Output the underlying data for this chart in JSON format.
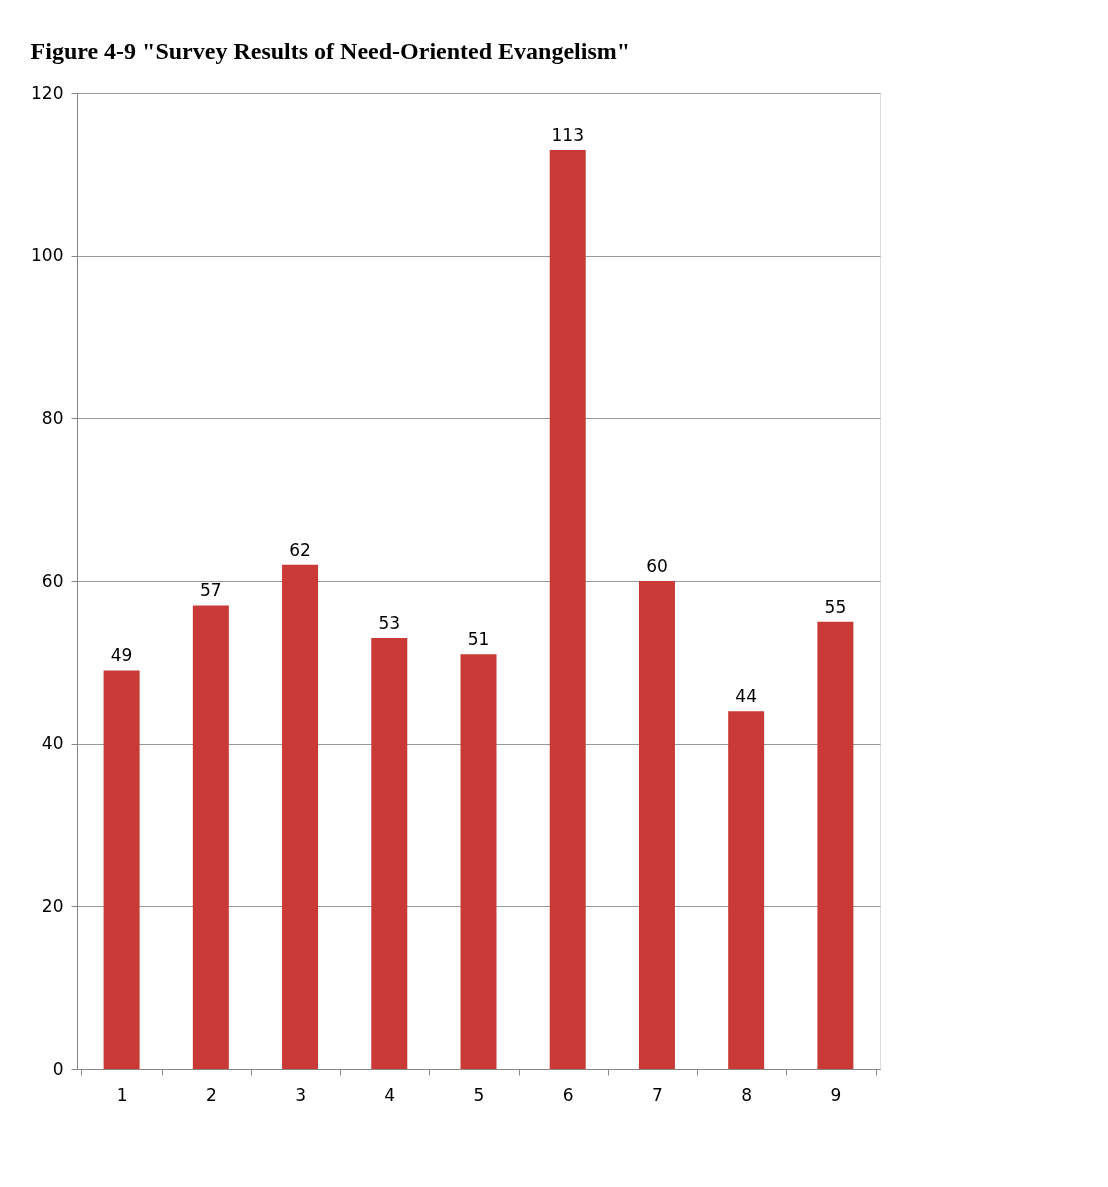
{
  "chart_data": {
    "type": "bar",
    "title": "Figure 4-9 \"Survey Results of Need-Oriented Evangelism\"",
    "categories": [
      "1",
      "2",
      "3",
      "4",
      "5",
      "6",
      "7",
      "8",
      "9"
    ],
    "values": [
      49,
      57,
      62,
      53,
      51,
      113,
      60,
      44,
      55
    ],
    "color": "#c93a36",
    "ylim": [
      0,
      120
    ],
    "yticks": [
      0,
      20,
      40,
      60,
      80,
      100,
      120
    ],
    "grid": "y",
    "data_labels": true
  }
}
